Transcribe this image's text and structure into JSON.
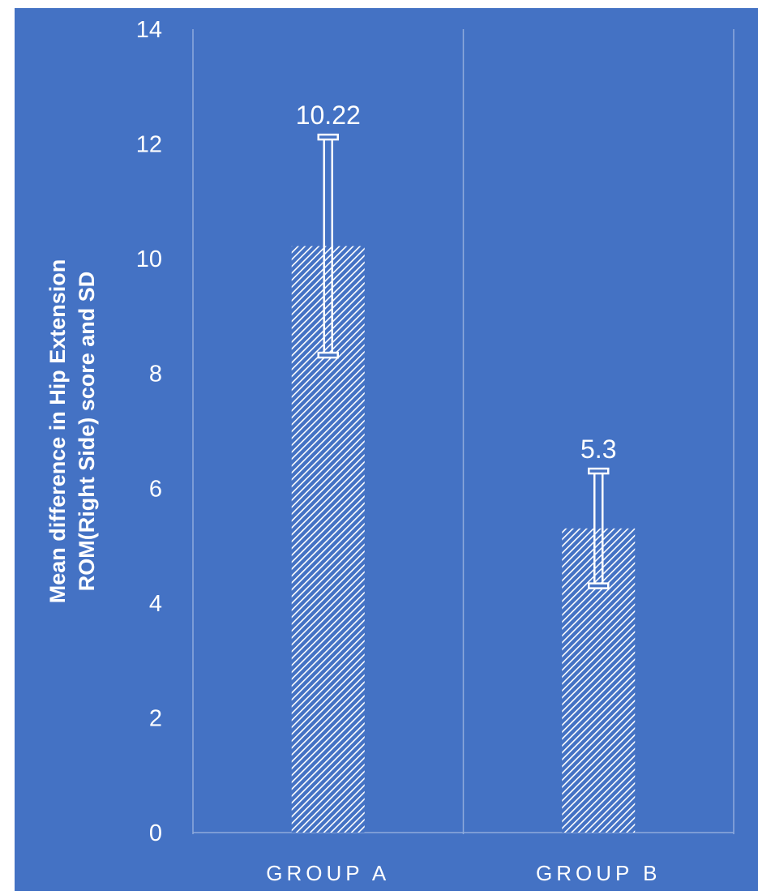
{
  "chart_data": {
    "type": "bar",
    "categories": [
      "GROUP A",
      "GROUP B"
    ],
    "values": [
      10.22,
      5.3
    ],
    "error": [
      1.9,
      1.0
    ],
    "data_labels": [
      "10.22",
      "5.3"
    ],
    "title": "",
    "xlabel": "",
    "ylabel_lines": [
      "Mean difference in Hip Extension",
      "ROM(Right Side) score and SD"
    ],
    "ylim": [
      0,
      14
    ],
    "yticks": [
      0,
      2,
      4,
      6,
      8,
      10,
      12,
      14
    ],
    "grid": "vertical category separators",
    "legend": "none"
  },
  "colors": {
    "background": "#4472c4",
    "foreground": "#ffffff",
    "separator": "#8eaadb",
    "bar_fill": "hatched-white-on-blue"
  }
}
